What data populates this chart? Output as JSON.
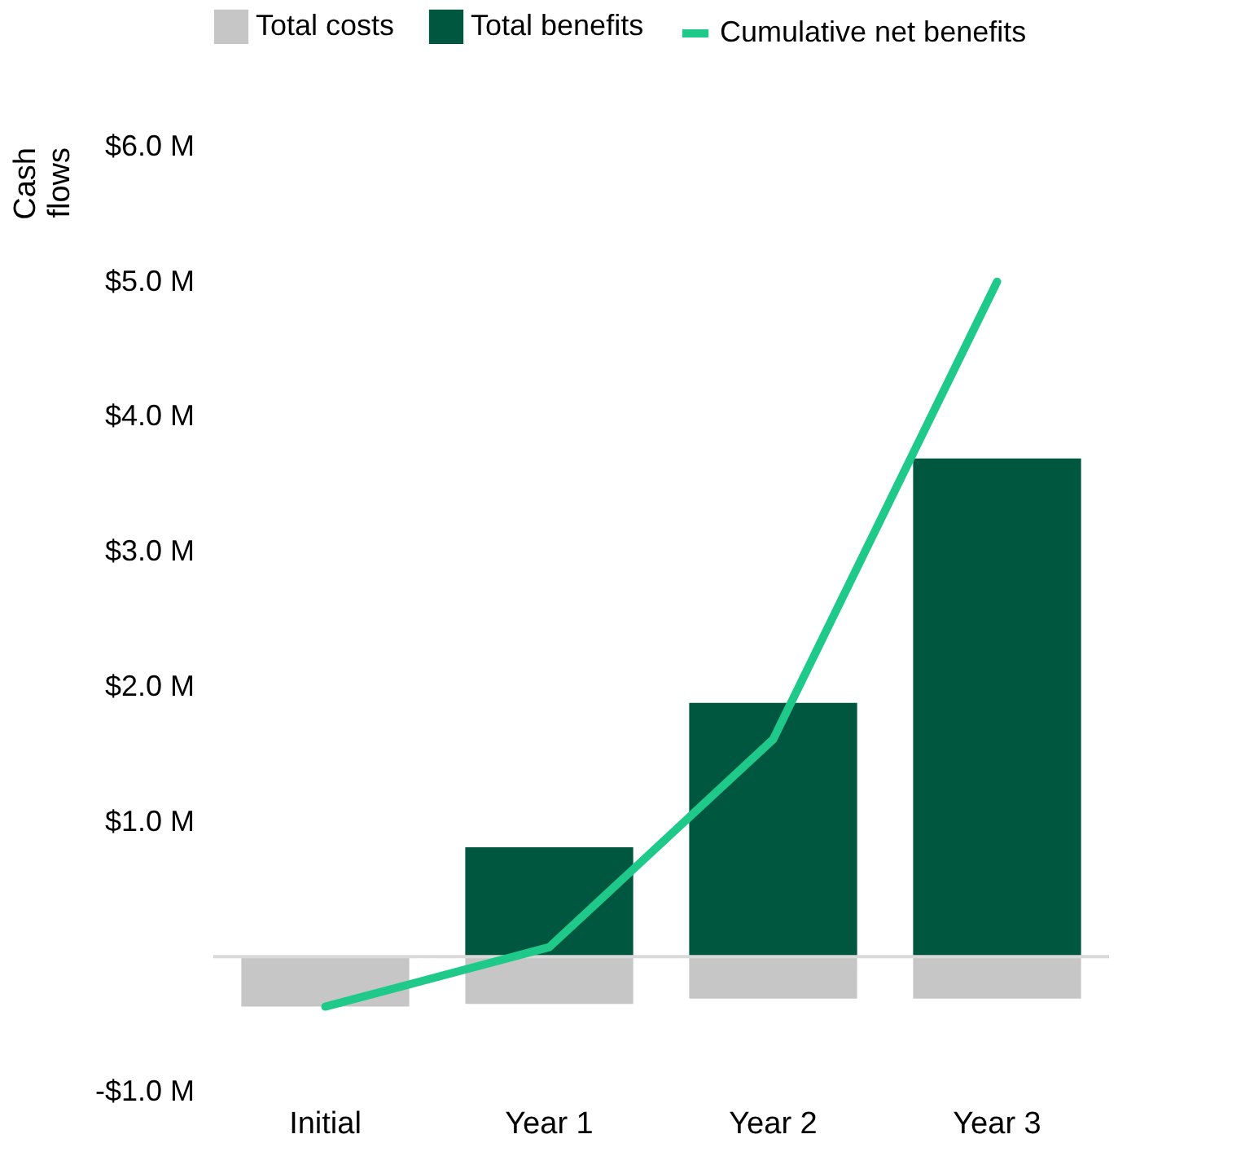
{
  "chart_data": {
    "type": "bar",
    "stacked": true,
    "legend": "top",
    "grid": false,
    "ylabel": "Cash flows",
    "categories": [
      "Initial",
      "Year 1",
      "Year 2",
      "Year 3"
    ],
    "series": [
      {
        "name": "Total costs",
        "color": "#c6c6c6",
        "values": [
          -0.37,
          -0.35,
          -0.31,
          -0.31
        ]
      },
      {
        "name": "Total benefits",
        "color": "#00573f",
        "values": [
          0,
          0.81,
          1.88,
          3.69
        ]
      },
      {
        "name": "Cumulative net benefits",
        "type": "line",
        "color": "#1fc98a",
        "values": [
          -0.37,
          0.07,
          1.61,
          5.0
        ]
      }
    ],
    "ylim": [
      -1.0,
      6.0
    ],
    "yticks": [
      {
        "value": -1,
        "label": "-$1.0 M"
      },
      {
        "value": 1,
        "label": "$1.0 M"
      },
      {
        "value": 2,
        "label": "$2.0 M"
      },
      {
        "value": 3,
        "label": "$3.0 M"
      },
      {
        "value": 4,
        "label": "$4.0 M"
      },
      {
        "value": 5,
        "label": "$5.0 M"
      },
      {
        "value": 6,
        "label": "$6.0 M"
      }
    ],
    "ref_lines": [
      {
        "axis": "y",
        "value": 0,
        "color": "#d9d9d9"
      }
    ]
  }
}
